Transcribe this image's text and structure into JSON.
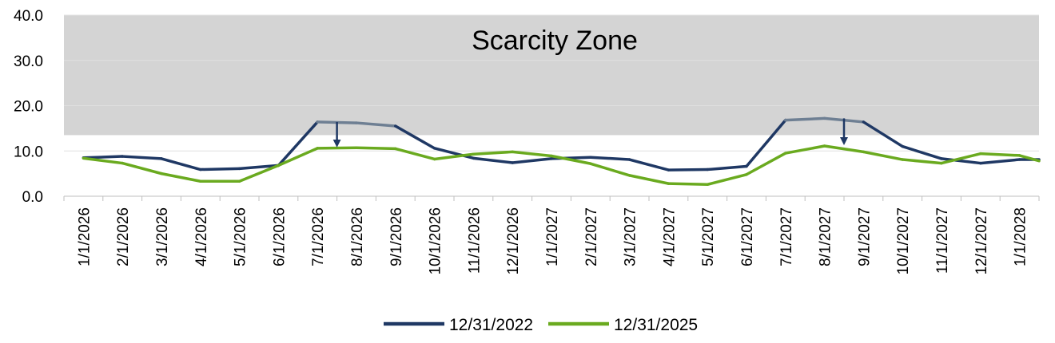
{
  "chart_data": {
    "type": "line",
    "title": "",
    "xlabel": "",
    "ylabel": "",
    "ylim": [
      0,
      40
    ],
    "yticks": [
      "0.0",
      "10.0",
      "20.0",
      "30.0",
      "40.0"
    ],
    "grid": true,
    "legend_position": "bottom",
    "categories": [
      "1/1/2026",
      "2/1/2026",
      "3/1/2026",
      "4/1/2026",
      "5/1/2026",
      "6/1/2026",
      "7/1/2026",
      "8/1/2026",
      "9/1/2026",
      "10/1/2026",
      "11/1/2026",
      "12/1/2026",
      "1/1/2027",
      "2/1/2027",
      "3/1/2027",
      "4/1/2027",
      "5/1/2027",
      "6/1/2027",
      "7/1/2027",
      "8/1/2027",
      "9/1/2027",
      "10/1/2027",
      "11/1/2027",
      "12/1/2027",
      "1/1/2028"
    ],
    "scarcity_zone": {
      "label": "Scarcity Zone",
      "threshold": 13.5,
      "color": "#d4d4d4"
    },
    "series": [
      {
        "name": "12/31/2022",
        "color": "#1f3864",
        "zone_color": "#6e7f93",
        "values": [
          8.5,
          8.8,
          8.3,
          5.9,
          6.1,
          6.8,
          16.4,
          16.2,
          15.5,
          10.6,
          8.4,
          7.4,
          8.3,
          8.6,
          8.1,
          5.8,
          5.9,
          6.6,
          16.8,
          17.2,
          16.4,
          11.0,
          8.3,
          7.3,
          8.1
        ]
      },
      {
        "name": "12/31/2025",
        "color": "#6aaa1f",
        "zone_color": "#6aaa1f",
        "values": [
          8.4,
          7.3,
          5.0,
          3.3,
          3.3,
          6.8,
          10.6,
          10.7,
          10.5,
          8.2,
          9.3,
          9.8,
          8.9,
          7.2,
          4.6,
          2.8,
          2.6,
          4.8,
          9.5,
          11.1,
          9.8,
          8.1,
          7.3,
          9.4,
          9.0
        ]
      }
    ],
    "annotations": [
      {
        "type": "arrow",
        "x": "7/1/2026",
        "from": 16.4,
        "to": 10.6
      },
      {
        "type": "arrow",
        "x": "8/1/2027",
        "from": 17.2,
        "to": 11.1
      }
    ]
  }
}
